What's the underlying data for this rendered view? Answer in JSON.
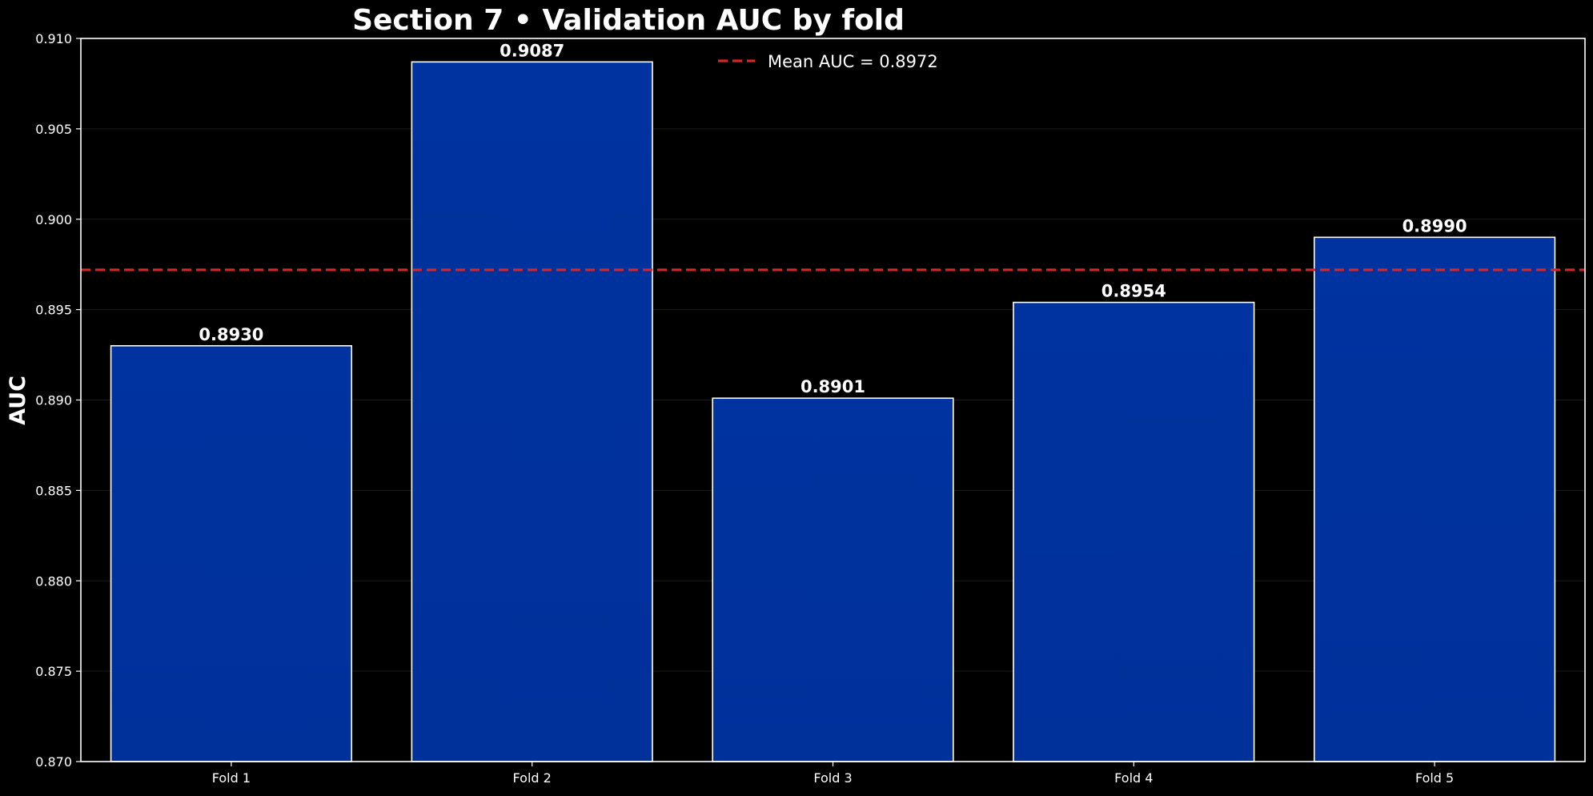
{
  "chart_data": {
    "type": "bar",
    "title": "Section 7 • Validation AUC by fold",
    "xlabel": "",
    "ylabel": "AUC",
    "categories": [
      "Fold 1",
      "Fold 2",
      "Fold 3",
      "Fold 4",
      "Fold 5"
    ],
    "values": [
      0.893,
      0.9087,
      0.8901,
      0.8954,
      0.899
    ],
    "value_labels": [
      "0.8930",
      "0.9087",
      "0.8901",
      "0.8954",
      "0.8990"
    ],
    "ylim": [
      0.87,
      0.91
    ],
    "yticks": [
      "0.870",
      "0.875",
      "0.880",
      "0.885",
      "0.890",
      "0.895",
      "0.900",
      "0.905",
      "0.910"
    ],
    "reference_line": {
      "value": 0.8972,
      "label": "Mean AUC = 0.8972",
      "style": "dashed"
    },
    "grid": true,
    "legend_position": "top-center",
    "colors": {
      "background": "#000000",
      "bar_fill_top": "#0033a0",
      "bar_fill_bottom": "#00309a",
      "bar_edge": "#ffffff",
      "mean_line": "#d62728",
      "text": "#ffffff",
      "grid": "#1a1a1a"
    }
  }
}
